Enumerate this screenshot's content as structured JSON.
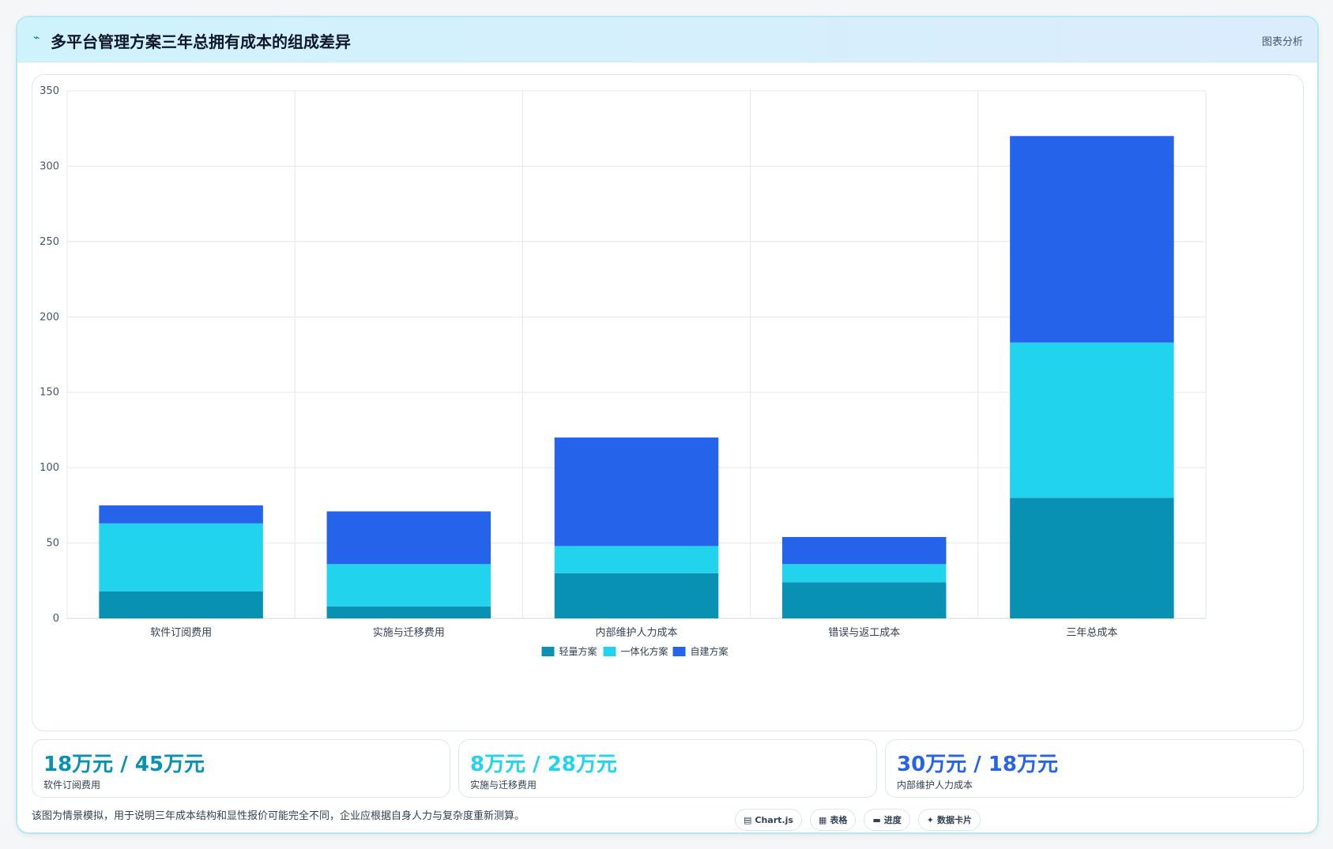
{
  "header": {
    "icon": "chart-line-icon",
    "title": "多平台管理方案三年总拥有成本的组成差异",
    "tag": "图表分析"
  },
  "colors": {
    "light": "#0891b2",
    "integrated": "#22d3ee",
    "custom": "#2563eb"
  },
  "chart_data": {
    "type": "bar",
    "stacked": true,
    "categories": [
      "软件订阅费用",
      "实施与迁移费用",
      "内部维护人力成本",
      "错误与返工成本",
      "三年总成本"
    ],
    "series": [
      {
        "name": "轻量方案",
        "color": "#0891b2",
        "values": [
          18,
          8,
          30,
          24,
          80
        ]
      },
      {
        "name": "一体化方案",
        "color": "#22d3ee",
        "values": [
          45,
          28,
          18,
          12,
          103
        ]
      },
      {
        "name": "自建方案",
        "color": "#2563eb",
        "values": [
          12,
          35,
          72,
          18,
          137
        ]
      }
    ],
    "ylim": [
      0,
      350
    ],
    "yticks": [
      0,
      50,
      100,
      150,
      200,
      250,
      300,
      350
    ],
    "grid": true,
    "legend": "bottom"
  },
  "kpis": [
    {
      "value": "18万元 / 45万元",
      "label": "软件订阅费用",
      "color": "#0891b2"
    },
    {
      "value": "8万元 / 28万元",
      "label": "实施与迁移费用",
      "color": "#22d3ee"
    },
    {
      "value": "30万元 / 18万元",
      "label": "内部维护人力成本",
      "color": "#2563eb"
    }
  ],
  "footnote": "该图为情景模拟，用于说明三年成本结构和显性报价可能完全不同，企业应根据自身人力与复杂度重新测算。",
  "chips": [
    {
      "icon": "▤",
      "label": "Chart.js"
    },
    {
      "icon": "▦",
      "label": "表格"
    },
    {
      "icon": "▬",
      "label": "进度"
    },
    {
      "icon": "✦",
      "label": "数据卡片"
    }
  ]
}
